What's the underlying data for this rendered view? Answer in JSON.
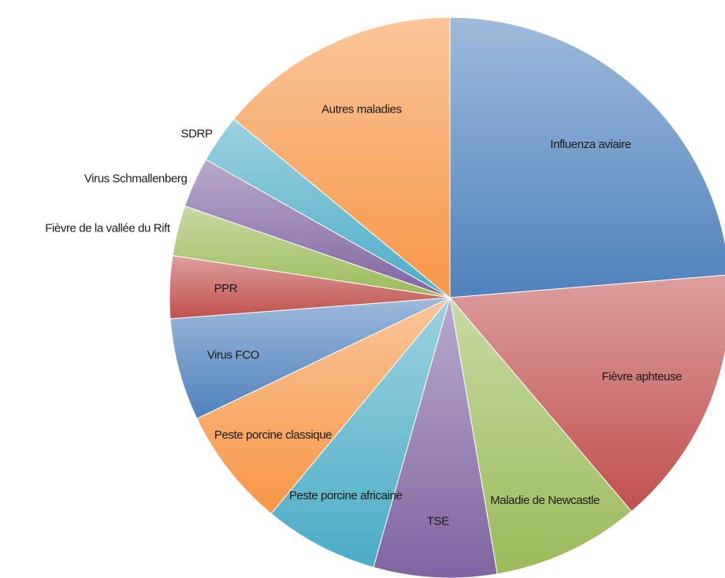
{
  "chart_data": {
    "type": "pie",
    "categories": [
      "Influenza aviaire",
      "Fièvre aphteuse",
      "Maladie de Newcastle",
      "TSE",
      "Peste porcine africaine",
      "Peste porcine classique",
      "Virus FCO",
      "PPR",
      "Fièvre de la vallée du Rift",
      "Virus Schmallenberg",
      "SDRP",
      "Autres maladies"
    ],
    "values": [
      23.7,
      15.1,
      8.5,
      7.1,
      6.6,
      6.9,
      5.9,
      3.6,
      2.9,
      2.9,
      2.8,
      14.0
    ],
    "colors": [
      "#4f81bd",
      "#c0504d",
      "#9bbb59",
      "#8064a2",
      "#4bacc6",
      "#f79646",
      "#4f81bd",
      "#c0504d",
      "#9bbb59",
      "#8064a2",
      "#4bacc6",
      "#f79646"
    ]
  }
}
